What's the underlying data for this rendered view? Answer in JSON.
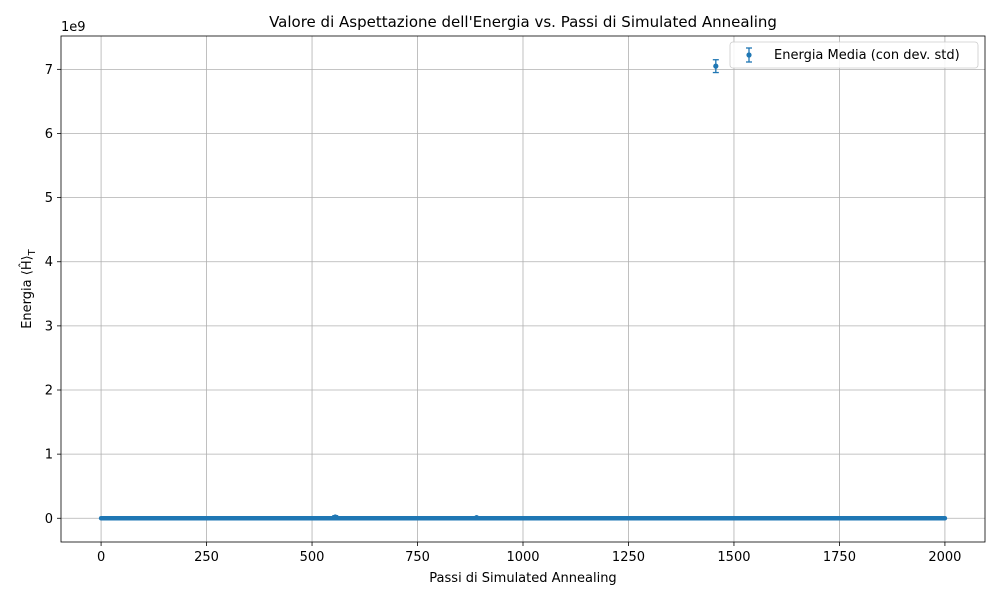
{
  "chart_data": {
    "type": "scatter",
    "title": "Valore di Aspettazione dell'Energia vs. Passi di Simulated Annealing",
    "xlabel": "Passi di Simulated Annealing",
    "ylabel": "Energia ⟨Ĥ⟩",
    "ylabel_subscript": "T",
    "y_offset_label": "1e9",
    "xlim": [
      -95,
      2095
    ],
    "ylim": [
      -0.37,
      7.52
    ],
    "y_units": "1e9",
    "xticks": [
      "0",
      "250",
      "500",
      "750",
      "1000",
      "1250",
      "1500",
      "1750",
      "2000"
    ],
    "xtick_values": [
      0,
      250,
      500,
      750,
      1000,
      1250,
      1500,
      1750,
      2000
    ],
    "yticks": [
      "0",
      "1",
      "2",
      "3",
      "4",
      "5",
      "6",
      "7"
    ],
    "ytick_values": [
      0,
      1,
      2,
      3,
      4,
      5,
      6,
      7
    ],
    "grid": true,
    "legend_position": "top-right",
    "color": "#1f77b4",
    "series": [
      {
        "name": "Energia Media (con dev. std)",
        "x_start": 0,
        "x_end": 2000,
        "baseline_y": 0,
        "outliers": [
          {
            "x": 555,
            "y": 0.02,
            "err": 0.02
          },
          {
            "x": 890,
            "y": 0.01,
            "err": 0.0
          },
          {
            "x": 1457,
            "y": 7.05,
            "err": 0.1
          }
        ]
      }
    ]
  }
}
